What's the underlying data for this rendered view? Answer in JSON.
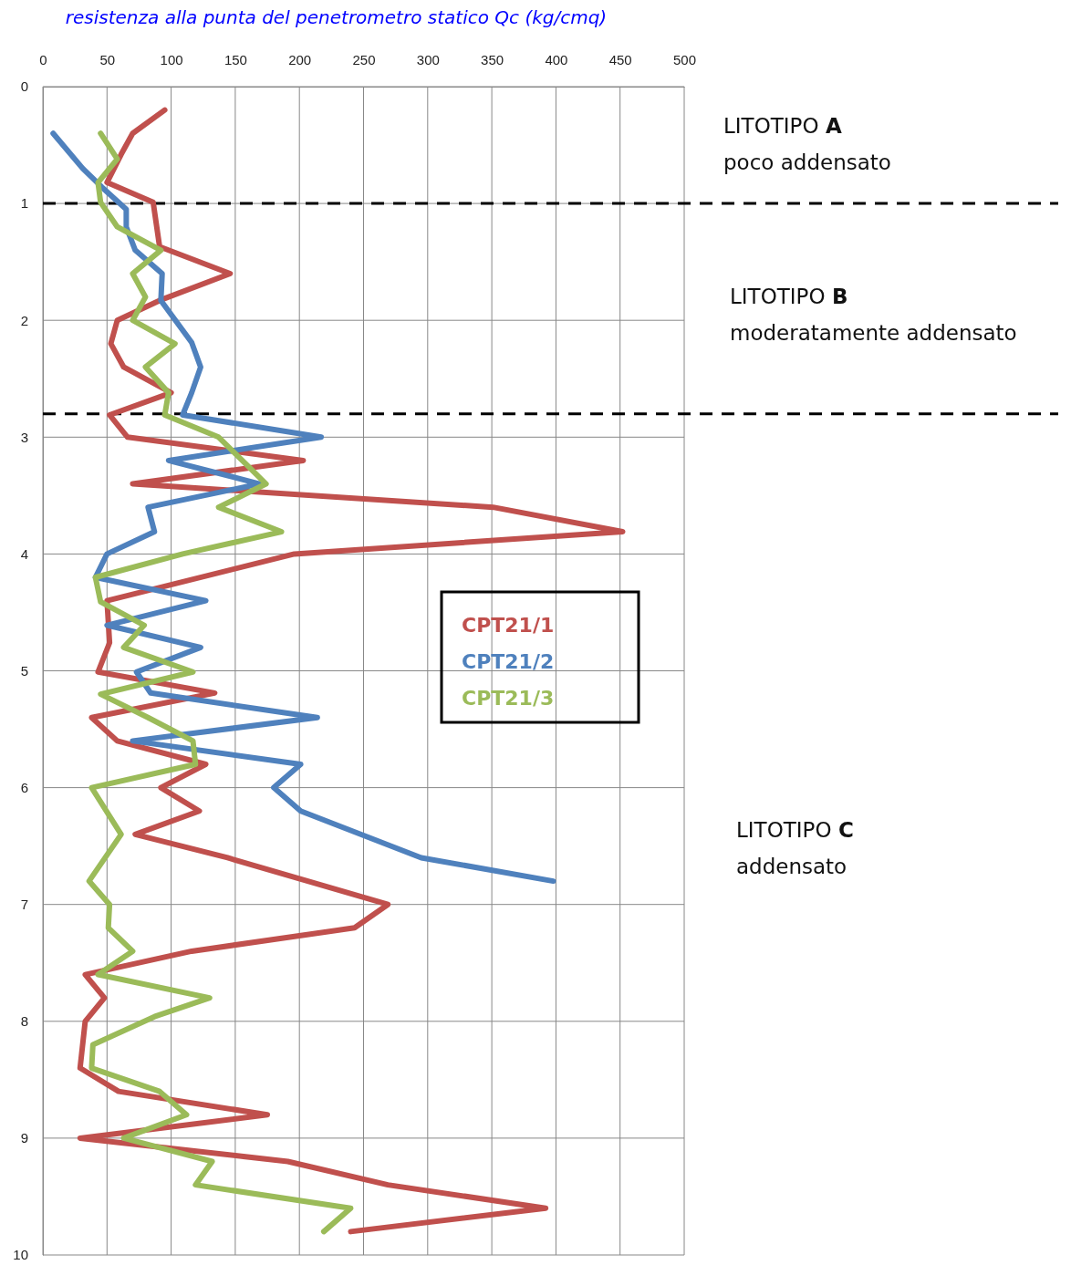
{
  "chart_data": {
    "type": "line",
    "xlabel": "resistenza alla punta del penetrometro statico Qc (kg/cmq)",
    "xlim": [
      0,
      500
    ],
    "xticks": [
      0,
      50,
      100,
      150,
      200,
      250,
      300,
      350,
      400,
      450,
      500
    ],
    "ylim": [
      10,
      0
    ],
    "yticks": [
      0,
      1,
      2,
      3,
      4,
      5,
      6,
      7,
      8,
      9,
      10
    ],
    "grid": true,
    "legend": "right",
    "marker": "none",
    "line_style": "solid",
    "series": [
      {
        "name": "CPT21/1",
        "color": "#c0504d",
        "x": [
          95,
          70,
          61,
          50,
          86,
          91,
          146,
          91,
          58,
          53,
          63,
          100,
          52,
          66,
          203,
          70,
          351,
          452,
          196,
          50,
          52,
          43,
          134,
          38,
          58,
          127,
          92,
          122,
          72,
          144,
          269,
          243,
          116,
          33,
          48,
          33,
          29,
          59,
          175,
          29,
          191,
          269,
          392,
          240
        ],
        "values": [
          0.2,
          0.4,
          0.58,
          0.82,
          0.99,
          1.37,
          1.6,
          1.83,
          2.0,
          2.2,
          2.4,
          2.62,
          2.81,
          3.0,
          3.2,
          3.4,
          3.6,
          3.81,
          4.0,
          4.4,
          4.76,
          5.01,
          5.19,
          5.4,
          5.6,
          5.8,
          6.0,
          6.2,
          6.4,
          6.6,
          7.0,
          7.2,
          7.4,
          7.6,
          7.8,
          8.0,
          8.4,
          8.6,
          8.8,
          9.0,
          9.2,
          9.4,
          9.6,
          9.8
        ]
      },
      {
        "name": "CPT21/2",
        "color": "#4f81bd",
        "x": [
          8,
          31,
          46,
          65,
          65,
          72,
          93,
          92,
          116,
          123,
          116,
          109,
          217,
          98,
          169,
          82,
          87,
          50,
          41,
          127,
          50,
          123,
          73,
          84,
          214,
          70,
          201,
          180,
          201,
          295,
          398
        ],
        "values": [
          0.4,
          0.7,
          0.86,
          1.05,
          1.2,
          1.4,
          1.6,
          1.83,
          2.19,
          2.4,
          2.62,
          2.81,
          3.0,
          3.2,
          3.4,
          3.6,
          3.81,
          4.0,
          4.2,
          4.4,
          4.61,
          4.8,
          5.01,
          5.19,
          5.4,
          5.6,
          5.8,
          6.0,
          6.2,
          6.6,
          6.8
        ]
      },
      {
        "name": "CPT21/3",
        "color": "#9bbb59",
        "x": [
          45,
          58,
          43,
          45,
          58,
          92,
          70,
          80,
          70,
          103,
          80,
          98,
          95,
          137,
          174,
          137,
          186,
          109,
          41,
          45,
          79,
          63,
          117,
          45,
          82,
          117,
          119,
          38,
          61,
          36,
          52,
          51,
          70,
          43,
          130,
          87,
          39,
          38,
          91,
          112,
          63,
          132,
          119,
          240,
          219
        ],
        "values": [
          0.4,
          0.62,
          0.82,
          0.99,
          1.2,
          1.4,
          1.6,
          1.8,
          2.0,
          2.2,
          2.4,
          2.62,
          2.81,
          3.0,
          3.4,
          3.6,
          3.81,
          4.0,
          4.2,
          4.41,
          4.61,
          4.8,
          5.01,
          5.2,
          5.4,
          5.6,
          5.8,
          6.0,
          6.4,
          6.8,
          7.0,
          7.2,
          7.4,
          7.6,
          7.8,
          7.96,
          8.2,
          8.4,
          8.6,
          8.8,
          9.0,
          9.2,
          9.4,
          9.6,
          9.8
        ]
      }
    ],
    "ref_lines": [
      {
        "axis": "y",
        "value": 1,
        "color": "#000000",
        "line_style": "dashed"
      },
      {
        "axis": "y",
        "value": 2.8,
        "color": "#000000",
        "line_style": "dashed"
      }
    ],
    "annotations": [
      "LITOTIPO A",
      "poco addensato",
      "LITOTIPO B",
      "moderatamente addensato",
      "LITOTIPO C",
      "addensato"
    ]
  }
}
